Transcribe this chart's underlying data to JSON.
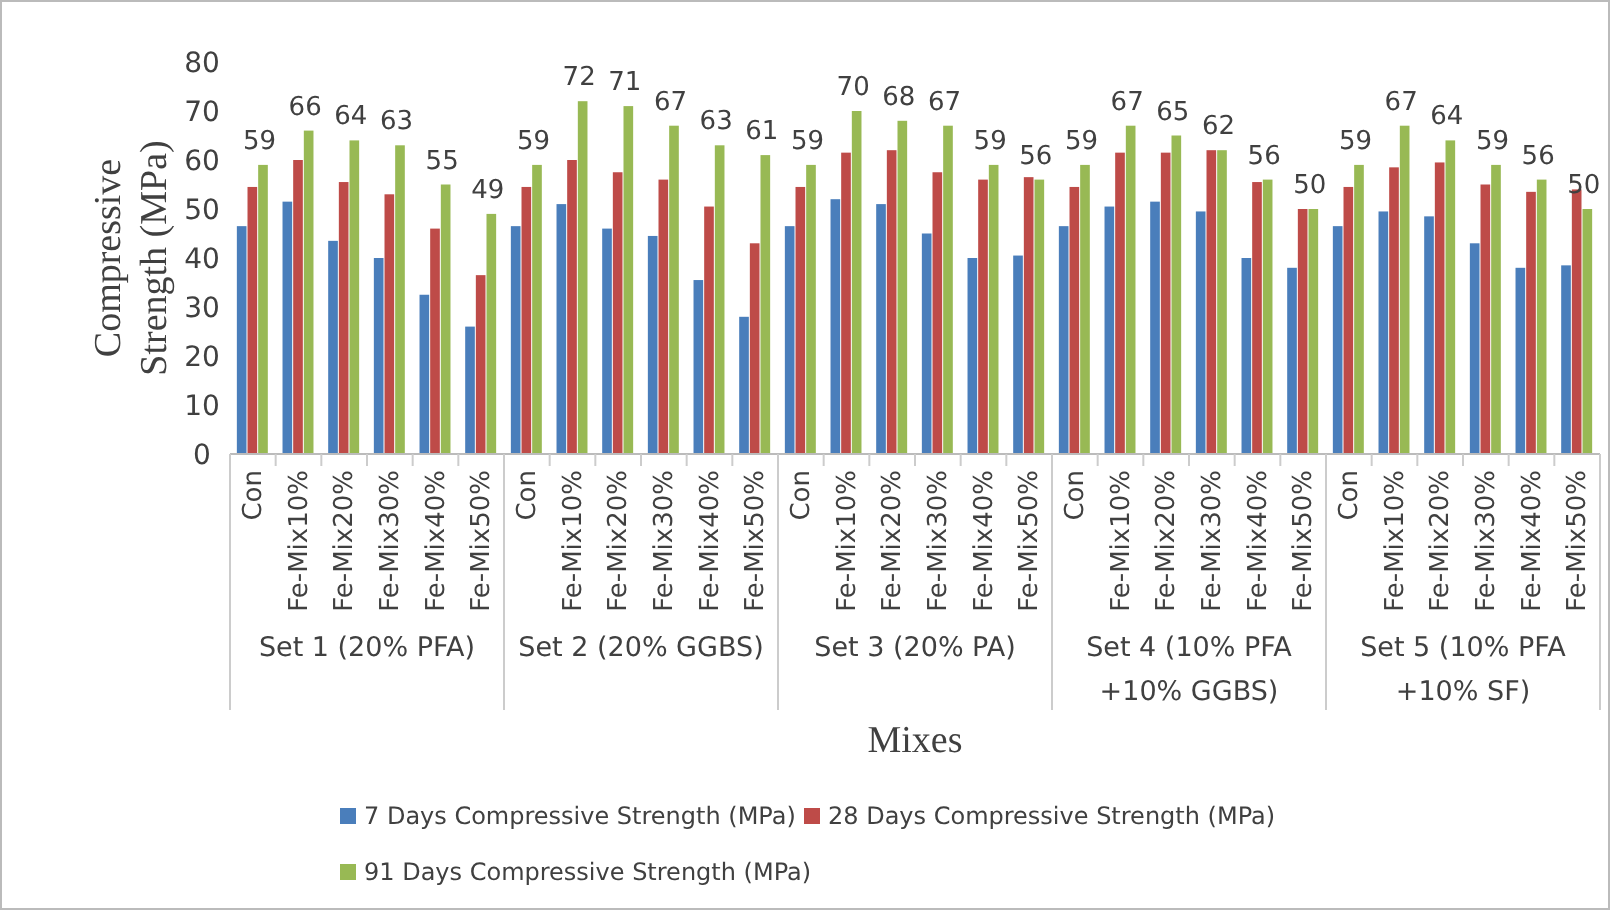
{
  "chart_data": {
    "type": "bar",
    "xlabel": "Mixes",
    "ylabel": "Compressive Strength  (MPa)",
    "categories": [
      "Con",
      "Fe-Mix10%",
      "Fe-Mix20%",
      "Fe-Mix30%",
      "Fe-Mix40%",
      "Fe-Mix50%",
      "Con",
      "Fe-Mix10%",
      "Fe-Mix20%",
      "Fe-Mix30%",
      "Fe-Mix40%",
      "Fe-Mix50%",
      "Con",
      "Fe-Mix10%",
      "Fe-Mix20%",
      "Fe-Mix30%",
      "Fe-Mix40%",
      "Fe-Mix50%",
      "Con",
      "Fe-Mix10%",
      "Fe-Mix20%",
      "Fe-Mix30%",
      "Fe-Mix40%",
      "Fe-Mix50%",
      "Con",
      "Fe-Mix10%",
      "Fe-Mix20%",
      "Fe-Mix30%",
      "Fe-Mix40%",
      "Fe-Mix50%"
    ],
    "annotations": [
      "Set 1 (20% PFA)",
      "Set 2 (20% GGBS)",
      "Set 3 (20% PA)",
      "Set 4 (10% PFA\n+10% GGBS)",
      "Set 5 (10% PFA\n+10% SF)"
    ],
    "series": [
      {
        "name": "7 Days Compressive Strength (MPa)",
        "color": "#4a7ebb",
        "values": [
          46.5,
          51.5,
          43.5,
          40,
          32.5,
          26,
          46.5,
          51,
          46,
          44.5,
          35.5,
          28,
          46.5,
          52,
          51,
          45,
          40,
          40.5,
          46.5,
          50.5,
          51.5,
          49.5,
          40,
          38,
          46.5,
          49.5,
          48.5,
          43,
          38,
          38.5
        ]
      },
      {
        "name": "28 Days Compressive Strength (MPa)",
        "color": "#be4b48",
        "values": [
          54.5,
          60,
          55.5,
          53,
          46,
          36.5,
          54.5,
          60,
          57.5,
          56,
          50.5,
          43,
          54.5,
          61.5,
          62,
          57.5,
          56,
          56.5,
          54.5,
          61.5,
          61.5,
          62,
          55.5,
          50,
          54.5,
          58.5,
          59.5,
          55,
          53.5,
          54
        ]
      },
      {
        "name": "91 Days Compressive Strength (MPa)",
        "color": "#98b954",
        "values": [
          59,
          66,
          64,
          63,
          55,
          49,
          59,
          72,
          71,
          67,
          63,
          61,
          59,
          70,
          68,
          67,
          59,
          56,
          59,
          67,
          65,
          62,
          56,
          50,
          59,
          67,
          64,
          59,
          56,
          50
        ],
        "value_labels": [
          "59",
          "66",
          "64",
          "63",
          "55",
          "49",
          "59",
          "72",
          "71",
          "67",
          "63",
          "61",
          "59",
          "70",
          "68",
          "67",
          "59",
          "56",
          "59",
          "67",
          "65",
          "62",
          "56",
          "50",
          "59",
          "67",
          "64",
          "59",
          "56",
          "50"
        ]
      }
    ],
    "ylim": [
      0,
      80
    ],
    "yticks": [
      0,
      10,
      20,
      30,
      40,
      50,
      60,
      70,
      80
    ],
    "grid": false,
    "legend": "bottom"
  }
}
